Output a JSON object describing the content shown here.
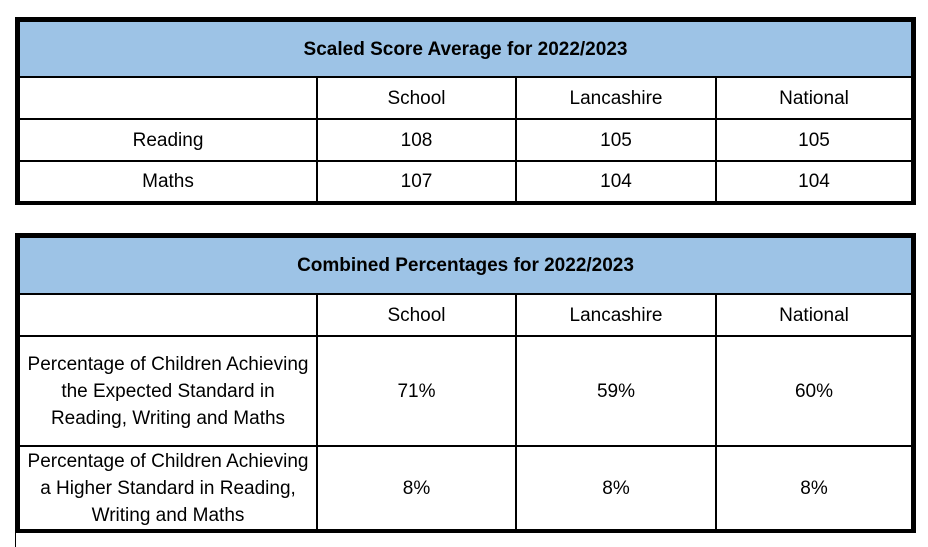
{
  "scaled_scores": {
    "title": "Scaled Score Average for 2022/2023",
    "columns": [
      "",
      "School",
      "Lancashire",
      "National"
    ],
    "rows": [
      {
        "label": "Reading",
        "school": "108",
        "lancashire": "105",
        "national": "105"
      },
      {
        "label": "Maths",
        "school": "107",
        "lancashire": "104",
        "national": "104"
      }
    ]
  },
  "combined_percentages": {
    "title": "Combined Percentages for 2022/2023",
    "columns": [
      "",
      "School",
      "Lancashire",
      "National"
    ],
    "rows": [
      {
        "label": "Percentage of Children Achieving the Expected Standard in Reading, Writing and Maths",
        "school": "71%",
        "lancashire": "59%",
        "national": "60%"
      },
      {
        "label": "Percentage of Children Achieving a Higher Standard in Reading, Writing and Maths",
        "school": "8%",
        "lancashire": "8%",
        "national": "8%"
      }
    ]
  },
  "colors": {
    "header_fill": "#9dc3e6",
    "border": "#000000"
  }
}
